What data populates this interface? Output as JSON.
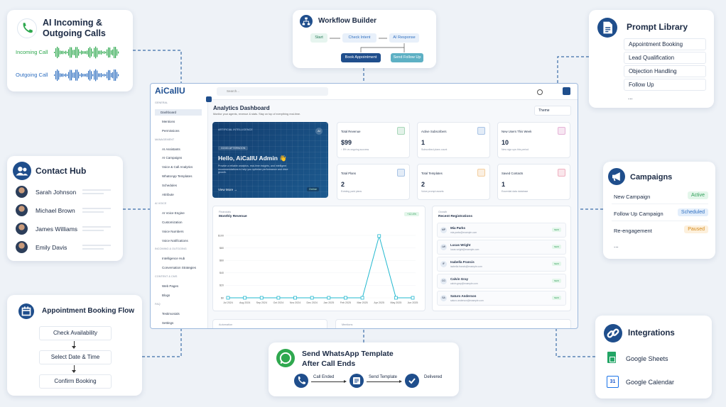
{
  "calls": {
    "title": "AI Incoming & Outgoing Calls",
    "incoming": "Incoming Call",
    "outgoing": "Outgoing Call"
  },
  "workflow": {
    "title": "Workflow Builder",
    "nodes": [
      "Start",
      "Check Intent",
      "AI Response",
      "Book Appointment",
      "Send Follow Up"
    ]
  },
  "prompts": {
    "title": "Prompt Library",
    "items": [
      "Appointment Booking",
      "Lead Qualification",
      "Objection Handling",
      "Follow Up",
      "..."
    ]
  },
  "contacts": {
    "title": "Contact Hub",
    "names": [
      "Sarah Johnson",
      "Michael Brown",
      "James Williams",
      "Emily Davis"
    ]
  },
  "campaigns": {
    "title": "Campaigns",
    "rows": [
      {
        "name": "New Campaign",
        "status": "Active"
      },
      {
        "name": "Follow Up Campaign",
        "status": "Scheduled"
      },
      {
        "name": "Re-engagement",
        "status": "Paused"
      }
    ],
    "more": "..."
  },
  "booking": {
    "title": "Appointment Booking Flow",
    "steps": [
      "Check Availability",
      "Select Date & Time",
      "Confirm Booking"
    ]
  },
  "whatsapp": {
    "title": "Send WhatsApp Template After Call Ends",
    "steps": [
      "Call Ended",
      "Send Template",
      "Delivered"
    ]
  },
  "integrations": {
    "title": "Integrations",
    "items": [
      {
        "name": "Google Sheets"
      },
      {
        "name": "Google Calendar",
        "icon": "31"
      }
    ]
  },
  "dashboard": {
    "brand": "AiCallU",
    "search": "Search...",
    "sidebar": [
      "GENERAL",
      "Dashboard",
      "Mentions",
      "Permissions",
      "MANAGEMENT",
      "AI Assistants",
      "AI Campaigns",
      "Voice & Call Analytics",
      "WhatsApp Templates",
      "Schedules",
      "Attribute",
      "AI VOICE",
      "AI Voice Engine",
      "Customization",
      "Voice Numbers",
      "Voice Notifications",
      "INCOMING & OUTGOING",
      "Intelligence Hub",
      "Conversation Strategies",
      "CONTENT & CMS",
      "Web Pages",
      "Blogs",
      "FAQ",
      "Testimonials",
      "Settings"
    ],
    "heading": "Analytics Dashboard",
    "subheading": "Monitor your agents, revenue & stats. Stay on top of everything real-time.",
    "theme": "Theme",
    "hero": {
      "tag": "ARTIFICIAL INTELLIGENCE",
      "badge": "AI",
      "greeting": "GOOD AFTERNOON",
      "title": "Hello, AiCallU Admin 👋",
      "text": "Provide a reliable analytics, real-time insights, and intelligent recommendations to help you optimize performance and drive growth.",
      "link": "View More →",
      "status": "Online"
    },
    "stats": [
      {
        "label": "Total Revenue",
        "value": "$99",
        "note": "↑ 8% vs ongoing success"
      },
      {
        "label": "Active Subscribers",
        "value": "1",
        "note": "Subscribed plans count"
      },
      {
        "label": "New Users This Week",
        "value": "10",
        "note": "New sign ups this period"
      },
      {
        "label": "Total Plans",
        "value": "2",
        "note": "Existing paid plans"
      },
      {
        "label": "Total Templates",
        "value": "2",
        "note": "Voice prompt assets"
      },
      {
        "label": "Saved Contacts",
        "value": "1",
        "note": "Essential data database"
      }
    ],
    "financials": {
      "kicker": "Financials",
      "badge": "+12.4%"
    },
    "growth": {
      "kicker": "Growth",
      "title": "Recent Registrations",
      "people": [
        {
          "initials": "MP",
          "name": "Mia Parks",
          "email": "mia.parks@example.com",
          "tag": "NEW"
        },
        {
          "initials": "LW",
          "name": "Lucas Wright",
          "email": "lucas.wright@example.com",
          "tag": "NEW"
        },
        {
          "initials": "IF",
          "name": "Isabella Francis",
          "email": "isabella.francis@example.com",
          "tag": "NEW"
        },
        {
          "initials": "CG",
          "name": "Calvin Gray",
          "email": "calvin.gray@example.com",
          "tag": "NEW"
        },
        {
          "initials": "SA",
          "name": "Saturo Anderson",
          "email": "saturo.anderson@example.com",
          "tag": "NEW"
        }
      ]
    },
    "bottom": [
      "Automation",
      "Mentions"
    ]
  },
  "chart_data": {
    "type": "line",
    "title": "Monthly Revenue",
    "color": "#22b8cf",
    "categories": [
      "Jul 2024",
      "Aug 2024",
      "Sep 2024",
      "Oct 2024",
      "Nov 2024",
      "Dec 2024",
      "Jan 2025",
      "Feb 2025",
      "Mar 2025",
      "Apr 2025",
      "May 2025",
      "Jun 2025"
    ],
    "values": [
      0,
      0,
      0,
      0,
      0,
      0,
      0,
      0,
      0,
      99,
      0,
      0
    ],
    "ylim": [
      0,
      100
    ],
    "yticks": [
      {
        "value": 0,
        "label": "$0"
      },
      {
        "value": 20,
        "label": "$20"
      },
      {
        "value": 40,
        "label": "$40"
      },
      {
        "value": 60,
        "label": "$60"
      },
      {
        "value": 80,
        "label": "$80"
      },
      {
        "value": 100,
        "label": "$100"
      }
    ]
  }
}
